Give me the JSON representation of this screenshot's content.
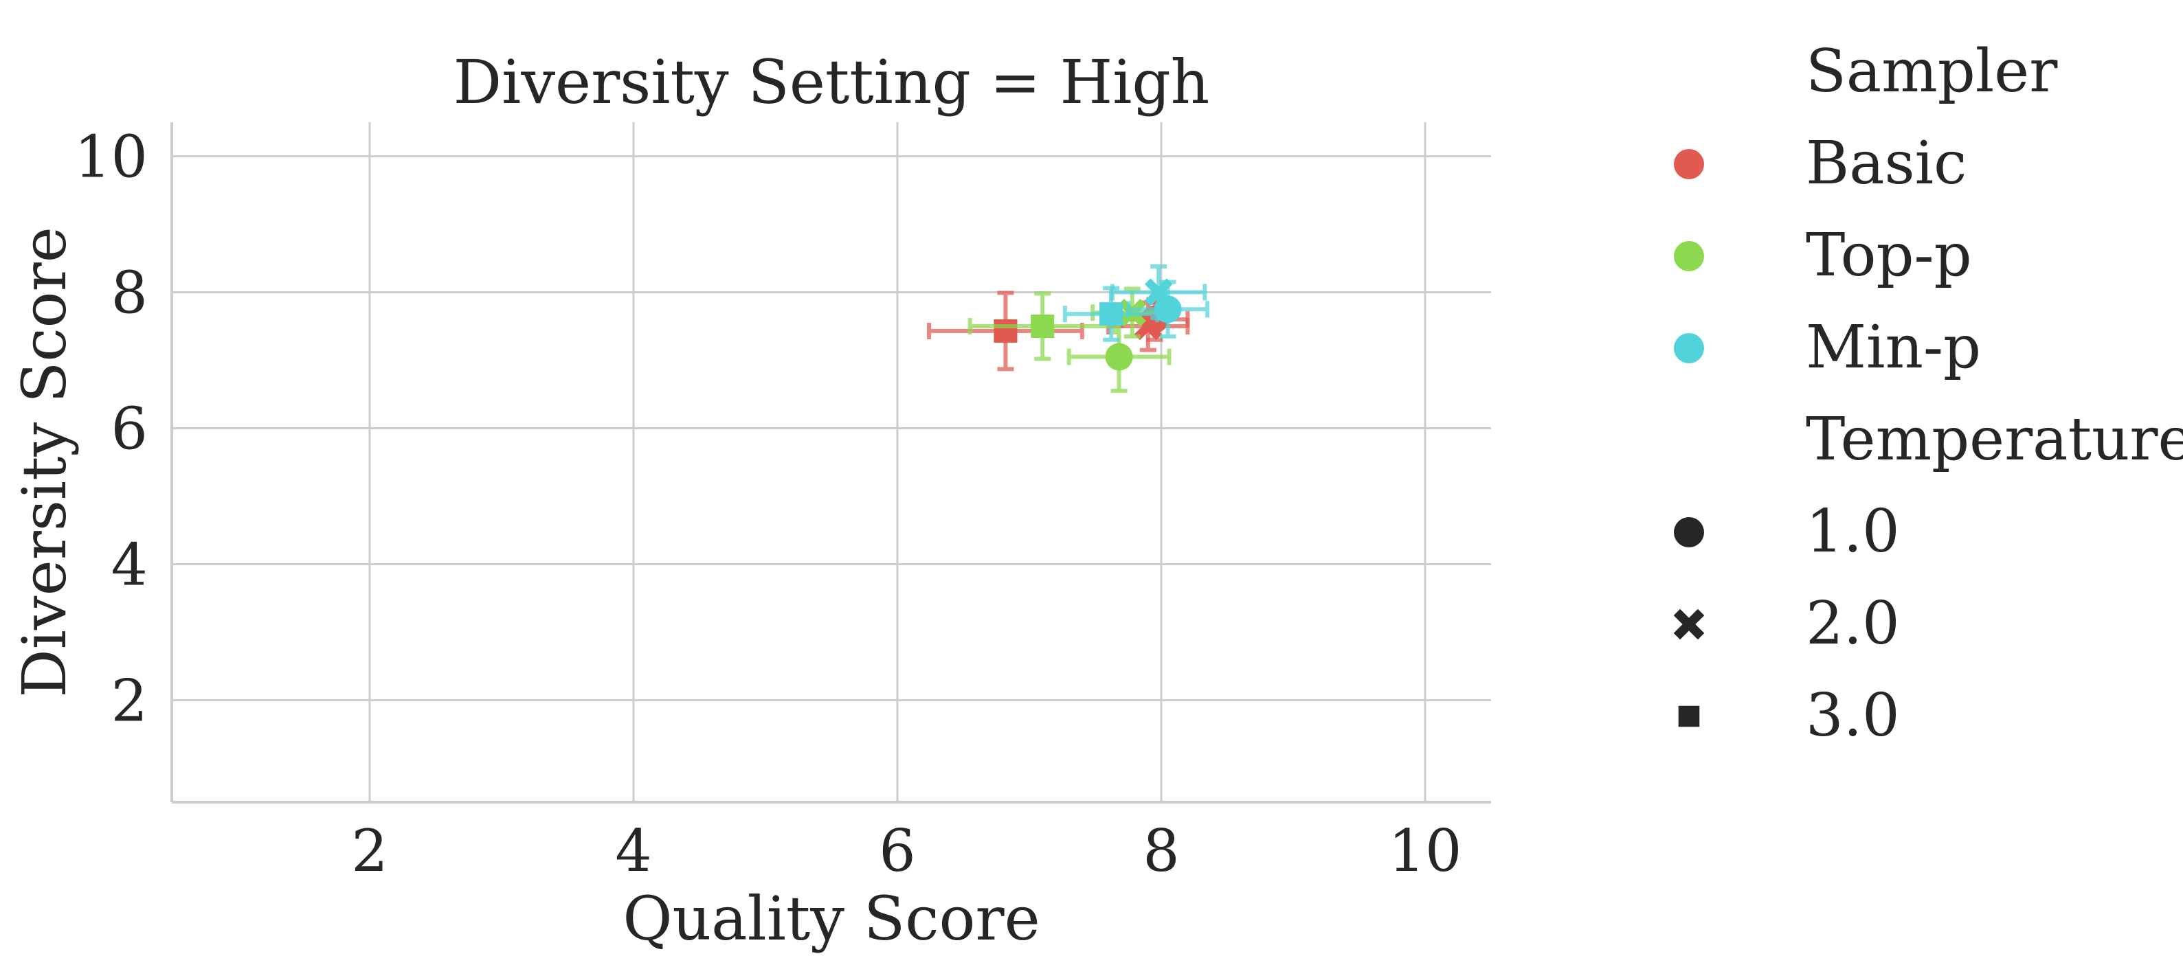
{
  "chart_data": {
    "type": "scatter",
    "title": "Diversity Setting = High",
    "xlabel": "Quality Score",
    "ylabel": "Diversity Score",
    "xlim": [
      0.5,
      10.5
    ],
    "ylim": [
      0.5,
      10.5
    ],
    "xticks": [
      "2",
      "4",
      "6",
      "8",
      "10"
    ],
    "yticks": [
      "2",
      "4",
      "6",
      "8",
      "10"
    ],
    "grid": true,
    "legend_position": "right",
    "hue_title": "Sampler",
    "style_title": "Temperature",
    "samplers": [
      {
        "name": "Basic",
        "color": "#e05a50"
      },
      {
        "name": "Top-p",
        "color": "#8cd94f"
      },
      {
        "name": "Min-p",
        "color": "#52d3db"
      }
    ],
    "temperatures": [
      {
        "label": "1.0",
        "marker": "circle"
      },
      {
        "label": "2.0",
        "marker": "x"
      },
      {
        "label": "3.0",
        "marker": "square"
      }
    ],
    "series": [
      {
        "sampler": "Basic",
        "temperature": "1.0",
        "x": 7.95,
        "y": 7.6,
        "xerr": 0.25,
        "yerr": 0.3
      },
      {
        "sampler": "Basic",
        "temperature": "2.0",
        "x": 7.9,
        "y": 7.5,
        "xerr": 0.3,
        "yerr": 0.35
      },
      {
        "sampler": "Basic",
        "temperature": "3.0",
        "x": 6.82,
        "y": 7.43,
        "xerr": 0.58,
        "yerr": 0.56
      },
      {
        "sampler": "Top-p",
        "temperature": "1.0",
        "x": 7.68,
        "y": 7.05,
        "xerr": 0.38,
        "yerr": 0.5
      },
      {
        "sampler": "Top-p",
        "temperature": "2.0",
        "x": 7.78,
        "y": 7.7,
        "xerr": 0.3,
        "yerr": 0.35
      },
      {
        "sampler": "Top-p",
        "temperature": "3.0",
        "x": 7.1,
        "y": 7.5,
        "xerr": 0.55,
        "yerr": 0.48
      },
      {
        "sampler": "Min-p",
        "temperature": "1.0",
        "x": 8.05,
        "y": 7.75,
        "xerr": 0.3,
        "yerr": 0.4
      },
      {
        "sampler": "Min-p",
        "temperature": "2.0",
        "x": 7.98,
        "y": 8.0,
        "xerr": 0.35,
        "yerr": 0.38
      },
      {
        "sampler": "Min-p",
        "temperature": "3.0",
        "x": 7.62,
        "y": 7.68,
        "xerr": 0.35,
        "yerr": 0.38
      }
    ]
  }
}
